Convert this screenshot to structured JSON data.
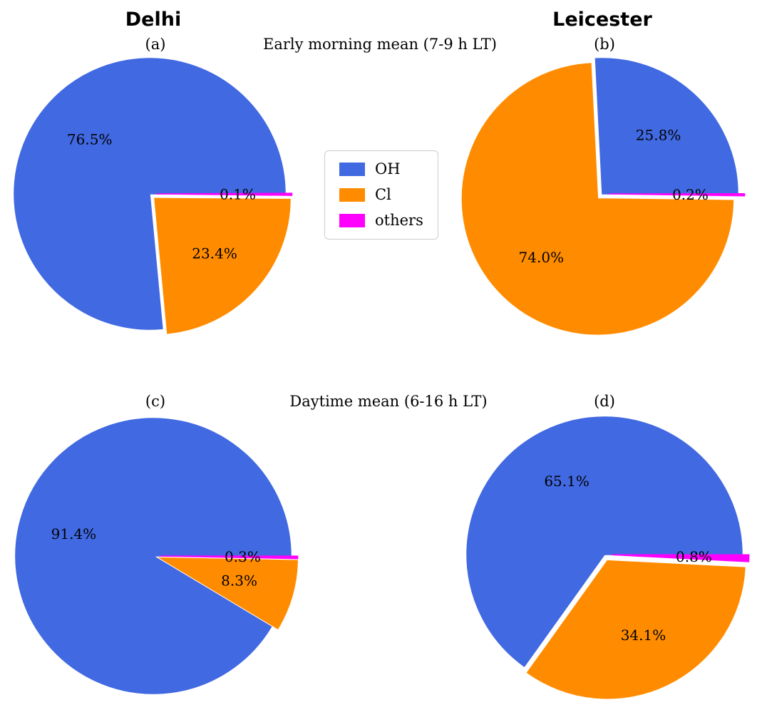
{
  "figure": {
    "column_titles": [
      "Delhi",
      "Leicester"
    ],
    "row_titles": [
      "Early morning mean (7-9 h LT)",
      "Daytime mean (6-16 h LT)"
    ],
    "panel_labels": [
      "(a)",
      "(b)",
      "(c)",
      "(d)"
    ]
  },
  "legend": {
    "position": "center",
    "border_color": "#cccccc",
    "items": [
      {
        "label": "OH",
        "color": "#4169e1"
      },
      {
        "label": "Cl",
        "color": "#ff8c00"
      },
      {
        "label": "others",
        "color": "#ff00ff"
      }
    ]
  },
  "chart_data": [
    {
      "type": "pie",
      "panel": "(a)",
      "city": "Delhi",
      "period": "Early morning mean (7-9 h LT)",
      "labels": [
        "OH",
        "Cl",
        "others"
      ],
      "values": [
        76.5,
        23.4,
        0.1
      ],
      "pct_labels": [
        "76.5%",
        "23.4%",
        "0.1%"
      ],
      "colors": [
        "#4169e1",
        "#ff8c00",
        "#ff00ff"
      ],
      "explode": [
        0,
        0.05,
        0.05
      ],
      "start_angle": 0,
      "direction": "counterclockwise"
    },
    {
      "type": "pie",
      "panel": "(b)",
      "city": "Leicester",
      "period": "Early morning mean (7-9 h LT)",
      "labels": [
        "OH",
        "Cl",
        "others"
      ],
      "values": [
        25.8,
        74.0,
        0.2
      ],
      "pct_labels": [
        "25.8%",
        "74.0%",
        "0.2%"
      ],
      "colors": [
        "#4169e1",
        "#ff8c00",
        "#ff00ff"
      ],
      "explode": [
        0,
        0.05,
        0.05
      ],
      "start_angle": 0,
      "direction": "counterclockwise"
    },
    {
      "type": "pie",
      "panel": "(c)",
      "city": "Delhi",
      "period": "Daytime mean (6-16 h LT)",
      "labels": [
        "OH",
        "Cl",
        "others"
      ],
      "values": [
        91.4,
        8.3,
        0.3
      ],
      "pct_labels": [
        "91.4%",
        "8.3%",
        "0.3%"
      ],
      "colors": [
        "#4169e1",
        "#ff8c00",
        "#ff00ff"
      ],
      "explode": [
        0,
        0.05,
        0.05
      ],
      "start_angle": 0,
      "direction": "counterclockwise"
    },
    {
      "type": "pie",
      "panel": "(d)",
      "city": "Leicester",
      "period": "Daytime mean (6-16 h LT)",
      "labels": [
        "OH",
        "Cl",
        "others"
      ],
      "values": [
        65.1,
        34.1,
        0.8
      ],
      "pct_labels": [
        "65.1%",
        "34.1%",
        "0.8%"
      ],
      "colors": [
        "#4169e1",
        "#ff8c00",
        "#ff00ff"
      ],
      "explode": [
        0,
        0.05,
        0.05
      ],
      "start_angle": 0,
      "direction": "counterclockwise"
    }
  ]
}
